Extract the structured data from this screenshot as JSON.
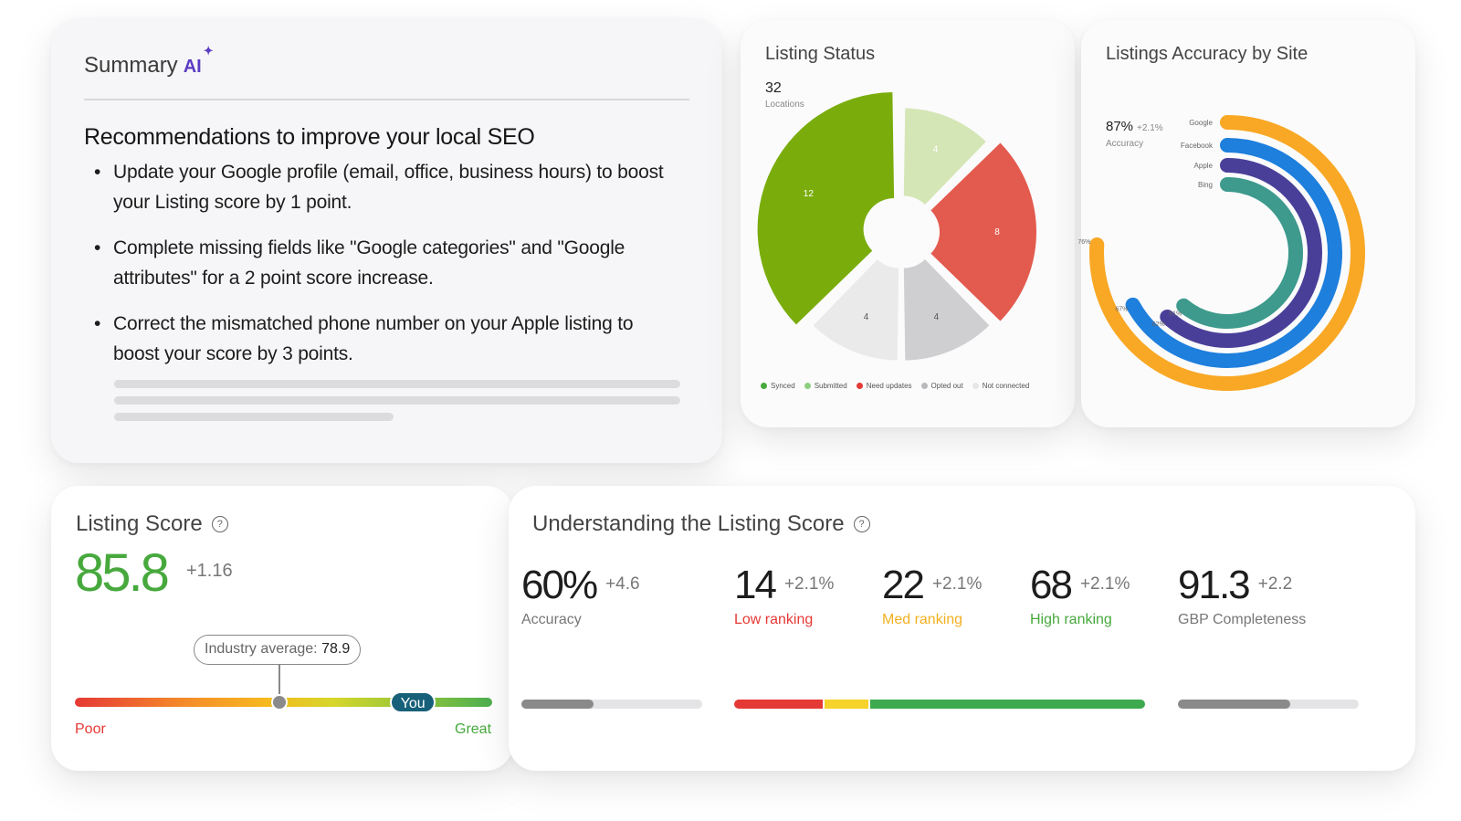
{
  "summary": {
    "title": "Summary",
    "ai_badge": "AI",
    "heading": "Recommendations to improve your local SEO",
    "items": [
      "Update your Google profile (email, office, business hours) to boost your Listing score by 1 point.",
      "Complete missing fields like \"Google categories\" and \"Google attributes\" for a 2 point score increase.",
      "Correct the mismatched phone number on your Apple listing to boost your score by 3 points."
    ]
  },
  "listing_status": {
    "title": "Listing Status",
    "count": "32",
    "count_label": "Locations",
    "legend": [
      "Synced",
      "Submitted",
      "Need updates",
      "Opted out",
      "Not connected"
    ]
  },
  "listings_accuracy": {
    "title": "Listings Accuracy by Site",
    "value": "87%",
    "delta": "+2.1%",
    "label": "Accuracy"
  },
  "listing_score": {
    "title": "Listing Score",
    "help_icon": "question-circle-icon",
    "score": "85.8",
    "delta": "+1.16",
    "industry_label": "Industry average:",
    "industry_value": "78.9",
    "industry_fraction": 0.49,
    "you_label": "You",
    "you_fraction": 0.81,
    "poor": "Poor",
    "great": "Great"
  },
  "understanding": {
    "title": "Understanding the Listing Score",
    "help_icon": "question-circle-icon",
    "metrics": [
      {
        "value": "60%",
        "delta": "+4.6",
        "label": "Accuracy",
        "color": "#777777"
      },
      {
        "value": "14",
        "delta": "+2.1%",
        "label": "Low ranking",
        "color": "#e53935"
      },
      {
        "value": "22",
        "delta": "+2.1%",
        "label": "Med ranking",
        "color": "#f2b01e"
      },
      {
        "value": "68",
        "delta": "+2.1%",
        "label": "High ranking",
        "color": "#47a93d"
      },
      {
        "value": "91.3",
        "delta": "+2.2",
        "label": "GBP Completeness",
        "color": "#777777"
      }
    ],
    "accuracy_fill": 0.4,
    "gbp_fill": 0.62,
    "ranking_segments": [
      {
        "share": 0.22,
        "color": "#e53935"
      },
      {
        "share": 0.11,
        "color": "#f5d32a"
      },
      {
        "share": 0.67,
        "color": "#3daa4f"
      }
    ]
  },
  "chart_data": [
    {
      "type": "pie",
      "title": "Listing Status",
      "categories": [
        "Synced",
        "Submitted",
        "Need updates",
        "Opted out",
        "Not connected"
      ],
      "values": [
        12,
        4,
        8,
        4,
        4
      ],
      "colors": [
        "#7aad0c",
        "#d5e6b6",
        "#e35b4e",
        "#cfcfd1",
        "#eaeaeb"
      ],
      "legend_colors": [
        "#47a93d",
        "#8ccf7e",
        "#e53935",
        "#b9b9bb",
        "#e6e6e8"
      ],
      "legend": "bottom"
    },
    {
      "type": "bar",
      "subtype": "radial",
      "title": "Listings Accuracy by Site",
      "categories": [
        "Google",
        "Facebook",
        "Apple",
        "Bing"
      ],
      "values": [
        76,
        67,
        62,
        61
      ],
      "value_labels": [
        "76%",
        "67%",
        "62%",
        "61%"
      ],
      "colors": [
        "#f9a825",
        "#1e7fdc",
        "#4a3f98",
        "#3d9a8c"
      ],
      "max": 100
    }
  ]
}
